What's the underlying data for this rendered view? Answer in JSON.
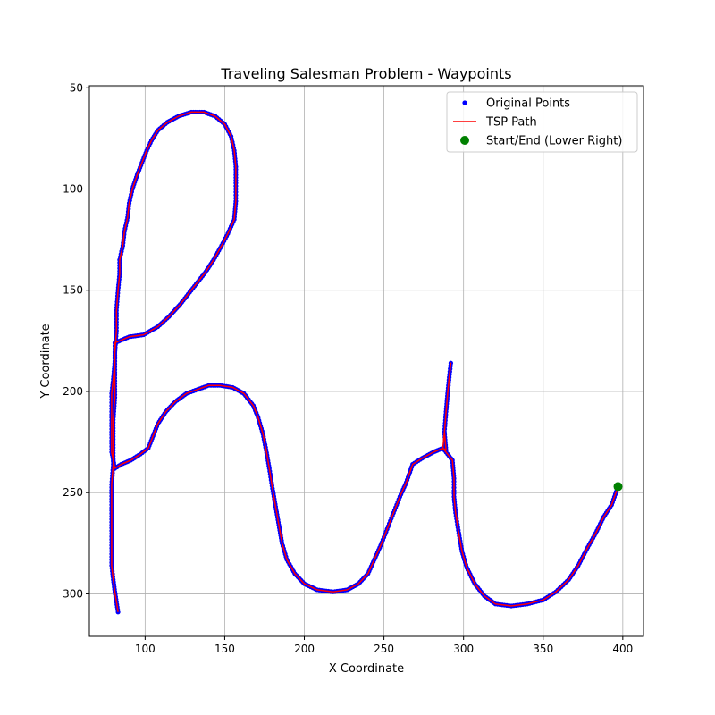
{
  "chart_data": {
    "type": "scatter",
    "title": "Traveling Salesman Problem - Waypoints",
    "xlabel": "X Coordinate",
    "ylabel": "Y Coordinate",
    "xlim": [
      65,
      413
    ],
    "ylim": [
      321,
      49
    ],
    "y_inverted": true,
    "grid": true,
    "legend_position": "top-right",
    "xticks": [
      100,
      150,
      200,
      250,
      300,
      350,
      400
    ],
    "yticks": [
      50,
      100,
      150,
      200,
      250,
      300
    ],
    "series": [
      {
        "name": "Original Points",
        "kind": "scatter",
        "color": "#0000ff",
        "points": [
          [
            397,
            247
          ],
          [
            393,
            256
          ],
          [
            388,
            262
          ],
          [
            383,
            270
          ],
          [
            378,
            277
          ],
          [
            372,
            286
          ],
          [
            366,
            293
          ],
          [
            358,
            299
          ],
          [
            350,
            303
          ],
          [
            340,
            305
          ],
          [
            330,
            306
          ],
          [
            320,
            305
          ],
          [
            313,
            301
          ],
          [
            307,
            295
          ],
          [
            302,
            287
          ],
          [
            299,
            279
          ],
          [
            297,
            270
          ],
          [
            295,
            260
          ],
          [
            294,
            252
          ],
          [
            294,
            243
          ],
          [
            293,
            234
          ],
          [
            287,
            228
          ],
          [
            281,
            230
          ],
          [
            274,
            233
          ],
          [
            268,
            236
          ],
          [
            264,
            245
          ],
          [
            260,
            252
          ],
          [
            256,
            260
          ],
          [
            252,
            268
          ],
          [
            248,
            276
          ],
          [
            244,
            283
          ],
          [
            240,
            290
          ],
          [
            234,
            295
          ],
          [
            227,
            298
          ],
          [
            218,
            299
          ],
          [
            208,
            298
          ],
          [
            200,
            295
          ],
          [
            194,
            290
          ],
          [
            189,
            283
          ],
          [
            186,
            275
          ],
          [
            184,
            266
          ],
          [
            182,
            257
          ],
          [
            180,
            248
          ],
          [
            178,
            238
          ],
          [
            176,
            229
          ],
          [
            174,
            221
          ],
          [
            171,
            213
          ],
          [
            168,
            207
          ],
          [
            162,
            201
          ],
          [
            155,
            198
          ],
          [
            147,
            197
          ],
          [
            140,
            197
          ],
          [
            133,
            199
          ],
          [
            126,
            201
          ],
          [
            119,
            205
          ],
          [
            113,
            210
          ],
          [
            108,
            216
          ],
          [
            105,
            222
          ],
          [
            102,
            228
          ],
          [
            97,
            231
          ],
          [
            91,
            234
          ],
          [
            85,
            236
          ],
          [
            81,
            238
          ],
          [
            79,
            230
          ],
          [
            79,
            220
          ],
          [
            79,
            210
          ],
          [
            79,
            201
          ],
          [
            80,
            194
          ],
          [
            81,
            185
          ],
          [
            81,
            176
          ],
          [
            90,
            173
          ],
          [
            99,
            172
          ],
          [
            108,
            168
          ],
          [
            115,
            163
          ],
          [
            122,
            157
          ],
          [
            128,
            151
          ],
          [
            133,
            146
          ],
          [
            138,
            141
          ],
          [
            143,
            135
          ],
          [
            148,
            128
          ],
          [
            152,
            122
          ],
          [
            156,
            115
          ],
          [
            157,
            106
          ],
          [
            157,
            97
          ],
          [
            157,
            89
          ],
          [
            156,
            81
          ],
          [
            154,
            74
          ],
          [
            150,
            68
          ],
          [
            144,
            64
          ],
          [
            137,
            62
          ],
          [
            129,
            62
          ],
          [
            121,
            64
          ],
          [
            114,
            67
          ],
          [
            108,
            71
          ],
          [
            104,
            76
          ],
          [
            101,
            81
          ],
          [
            98,
            87
          ],
          [
            95,
            93
          ],
          [
            92,
            100
          ],
          [
            90,
            107
          ],
          [
            89,
            114
          ],
          [
            87,
            121
          ],
          [
            86,
            128
          ],
          [
            84,
            135
          ],
          [
            84,
            142
          ],
          [
            83,
            150
          ],
          [
            82,
            160
          ],
          [
            82,
            170
          ],
          [
            81,
            181
          ],
          [
            81,
            192
          ],
          [
            81,
            203
          ],
          [
            80,
            214
          ],
          [
            80,
            225
          ],
          [
            80,
            236
          ],
          [
            79,
            246
          ],
          [
            79,
            256
          ],
          [
            79,
            266
          ],
          [
            79,
            276
          ],
          [
            79,
            286
          ],
          [
            80,
            293
          ],
          [
            81,
            299
          ],
          [
            82,
            304
          ],
          [
            83,
            309
          ],
          [
            289,
            229
          ],
          [
            288,
            220
          ],
          [
            289,
            210
          ],
          [
            290,
            201
          ],
          [
            291,
            193
          ],
          [
            292,
            186
          ]
        ]
      },
      {
        "name": "TSP Path",
        "kind": "line",
        "color": "#ff0000",
        "path": [
          [
            397,
            247
          ],
          [
            393,
            256
          ],
          [
            388,
            262
          ],
          [
            383,
            270
          ],
          [
            378,
            277
          ],
          [
            372,
            286
          ],
          [
            366,
            293
          ],
          [
            358,
            299
          ],
          [
            350,
            303
          ],
          [
            340,
            305
          ],
          [
            330,
            306
          ],
          [
            320,
            305
          ],
          [
            313,
            301
          ],
          [
            307,
            295
          ],
          [
            302,
            287
          ],
          [
            299,
            279
          ],
          [
            297,
            270
          ],
          [
            295,
            260
          ],
          [
            294,
            252
          ],
          [
            294,
            243
          ],
          [
            293,
            234
          ],
          [
            287,
            228
          ],
          [
            289,
            229
          ],
          [
            288,
            220
          ],
          [
            289,
            210
          ],
          [
            290,
            201
          ],
          [
            291,
            193
          ],
          [
            292,
            186
          ],
          [
            290,
            201
          ],
          [
            288,
            220
          ],
          [
            287,
            228
          ],
          [
            281,
            230
          ],
          [
            274,
            233
          ],
          [
            268,
            236
          ],
          [
            264,
            245
          ],
          [
            260,
            252
          ],
          [
            256,
            260
          ],
          [
            252,
            268
          ],
          [
            248,
            276
          ],
          [
            244,
            283
          ],
          [
            240,
            290
          ],
          [
            234,
            295
          ],
          [
            227,
            298
          ],
          [
            218,
            299
          ],
          [
            208,
            298
          ],
          [
            200,
            295
          ],
          [
            194,
            290
          ],
          [
            189,
            283
          ],
          [
            186,
            275
          ],
          [
            184,
            266
          ],
          [
            182,
            257
          ],
          [
            180,
            248
          ],
          [
            178,
            238
          ],
          [
            176,
            229
          ],
          [
            174,
            221
          ],
          [
            171,
            213
          ],
          [
            168,
            207
          ],
          [
            162,
            201
          ],
          [
            155,
            198
          ],
          [
            147,
            197
          ],
          [
            140,
            197
          ],
          [
            133,
            199
          ],
          [
            126,
            201
          ],
          [
            119,
            205
          ],
          [
            113,
            210
          ],
          [
            108,
            216
          ],
          [
            105,
            222
          ],
          [
            102,
            228
          ],
          [
            97,
            231
          ],
          [
            91,
            234
          ],
          [
            85,
            236
          ],
          [
            81,
            238
          ],
          [
            79,
            230
          ],
          [
            79,
            220
          ],
          [
            79,
            210
          ],
          [
            79,
            201
          ],
          [
            80,
            194
          ],
          [
            81,
            185
          ],
          [
            81,
            176
          ],
          [
            90,
            173
          ],
          [
            99,
            172
          ],
          [
            108,
            168
          ],
          [
            115,
            163
          ],
          [
            122,
            157
          ],
          [
            128,
            151
          ],
          [
            133,
            146
          ],
          [
            138,
            141
          ],
          [
            143,
            135
          ],
          [
            148,
            128
          ],
          [
            152,
            122
          ],
          [
            156,
            115
          ],
          [
            157,
            106
          ],
          [
            157,
            97
          ],
          [
            157,
            89
          ],
          [
            156,
            81
          ],
          [
            154,
            74
          ],
          [
            150,
            68
          ],
          [
            144,
            64
          ],
          [
            137,
            62
          ],
          [
            129,
            62
          ],
          [
            121,
            64
          ],
          [
            114,
            67
          ],
          [
            108,
            71
          ],
          [
            104,
            76
          ],
          [
            101,
            81
          ],
          [
            98,
            87
          ],
          [
            95,
            93
          ],
          [
            92,
            100
          ],
          [
            90,
            107
          ],
          [
            89,
            114
          ],
          [
            87,
            121
          ],
          [
            86,
            128
          ],
          [
            84,
            135
          ],
          [
            84,
            142
          ],
          [
            83,
            150
          ],
          [
            82,
            160
          ],
          [
            82,
            170
          ],
          [
            81,
            181
          ],
          [
            81,
            192
          ],
          [
            81,
            203
          ],
          [
            80,
            214
          ],
          [
            80,
            225
          ],
          [
            80,
            236
          ],
          [
            79,
            246
          ],
          [
            79,
            256
          ],
          [
            79,
            266
          ],
          [
            79,
            276
          ],
          [
            79,
            286
          ],
          [
            80,
            293
          ],
          [
            81,
            299
          ],
          [
            82,
            304
          ],
          [
            83,
            309
          ]
        ]
      },
      {
        "name": "Start/End (Lower Right)",
        "kind": "marker",
        "color": "#008000",
        "points": [
          [
            397,
            247
          ]
        ]
      }
    ]
  }
}
